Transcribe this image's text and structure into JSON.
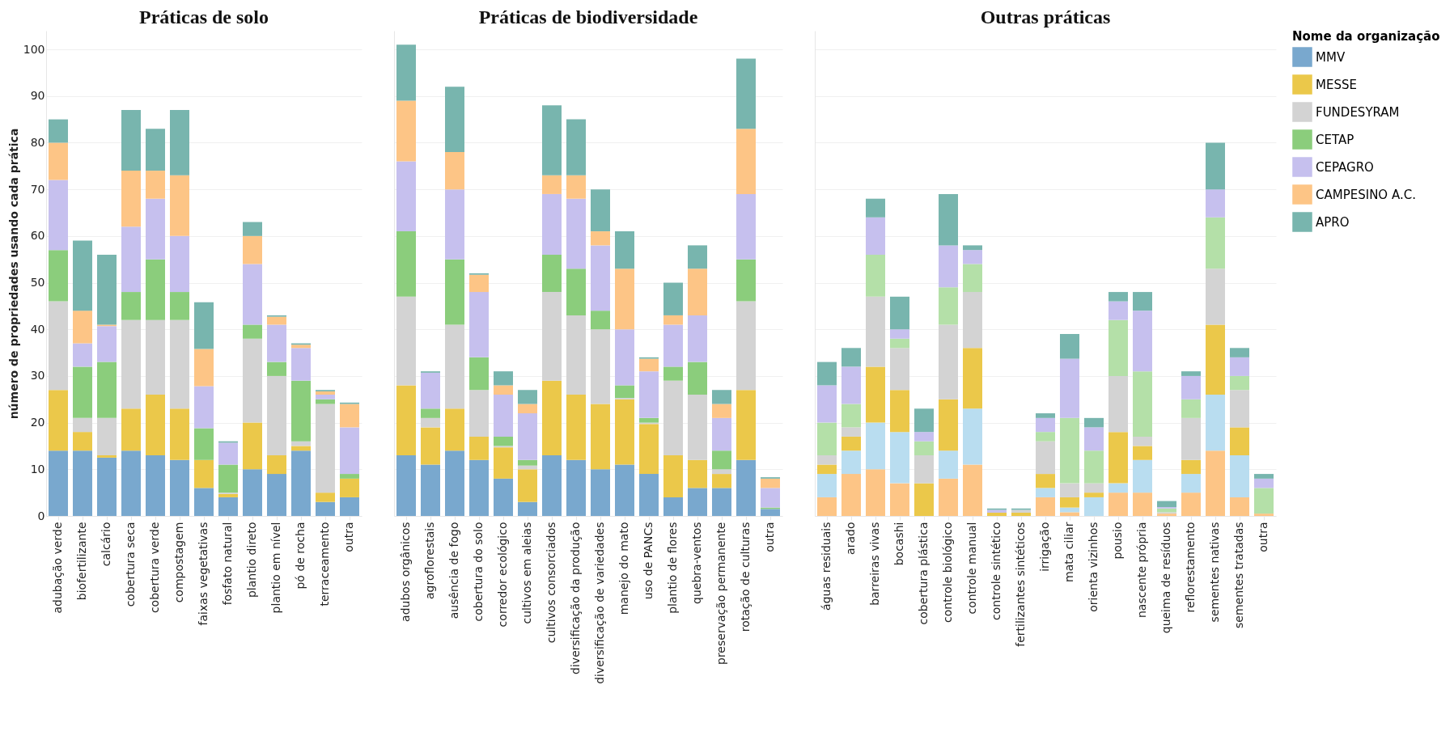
{
  "chart_data": [
    {
      "type": "bar",
      "stacked": true,
      "title": "Práticas de solo",
      "ylabel": "número de propriedades usando cada prática",
      "legend_title": "Nome da organização",
      "legend": "right",
      "grid": "y",
      "ylim": [
        0,
        104
      ],
      "yticks": [
        0,
        10,
        20,
        30,
        40,
        50,
        60,
        70,
        80,
        90,
        100
      ],
      "categories": [
        "adubação verde",
        "biofertilizante",
        "calcário",
        "cobertura seca",
        "cobertura verde",
        "compostagem",
        "faixas vegetativas",
        "fosfato natural",
        "plantio direto",
        "plantio em nível",
        "pó de rocha",
        "terraceamento",
        "outra"
      ],
      "series": [
        {
          "name": "MMV",
          "color": "#79a8ce",
          "values": [
            14,
            14,
            12.5,
            14,
            13,
            12,
            6,
            4,
            10,
            9,
            14,
            3,
            4
          ]
        },
        {
          "name": "MESSE",
          "color": "#ebc84a",
          "values": [
            13,
            4,
            0.5,
            9,
            13,
            11,
            6,
            0.7,
            10,
            4,
            1,
            2,
            4
          ]
        },
        {
          "name": "FUNDESYRAM",
          "color": "#d3d3d3",
          "values": [
            19,
            3,
            8,
            19,
            16,
            19,
            null,
            0.3,
            18,
            17,
            1,
            19,
            0
          ]
        },
        {
          "name": "CETAP",
          "color": "#8bcd7c",
          "values": [
            11,
            11,
            12,
            6,
            13,
            6,
            6.8,
            6,
            3,
            3,
            13,
            1,
            1
          ]
        },
        {
          "name": "CEPAGRO",
          "color": "#c6c0ee",
          "values": [
            15,
            5,
            7.7,
            14,
            13,
            12,
            9,
            4.7,
            13,
            8,
            7,
            1,
            10
          ]
        },
        {
          "name": "CAMPESINO A.C.",
          "color": "#fdc586",
          "values": [
            8,
            7,
            0.3,
            12,
            6,
            13,
            8,
            0,
            6,
            1.7,
            0.7,
            0.7,
            5
          ]
        },
        {
          "name": "APRO",
          "color": "#78b5ae",
          "values": [
            5,
            15,
            15,
            13,
            9,
            14,
            10,
            0.3,
            3,
            0.3,
            0.3,
            0.3,
            0.3
          ]
        }
      ]
    },
    {
      "type": "bar",
      "stacked": true,
      "title": "Práticas de biodiversidade",
      "grid": "y",
      "tick_labels": "x",
      "ylim": [
        0,
        104
      ],
      "yticks": [
        0,
        10,
        20,
        30,
        40,
        50,
        60,
        70,
        80,
        90,
        100
      ],
      "categories": [
        "adubos orgânicos",
        "agroflorestais",
        "ausência de fogo",
        "cobertura do solo",
        "corredor ecológico",
        "cultivos em aleias",
        "cultivos consorciados",
        "diversificação da produção",
        "diversificação de variedades",
        "manejo do mato",
        "uso de PANCs",
        "plantio de flores",
        "quebra-ventos",
        "preservação permanente",
        "rotação de culturas",
        "outra"
      ],
      "series": [
        {
          "name": "MMV",
          "color": "#79a8ce",
          "values": [
            13,
            11,
            14,
            12,
            8,
            3,
            13,
            12,
            10,
            11,
            9,
            4,
            6,
            6,
            12,
            1.5
          ]
        },
        {
          "name": "MESSE",
          "color": "#ebc84a",
          "values": [
            15,
            8,
            9,
            5,
            6.7,
            7,
            16,
            14,
            14,
            14,
            10.7,
            9,
            6,
            3,
            15,
            0
          ]
        },
        {
          "name": "FUNDESYRAM",
          "color": "#d3d3d3",
          "values": [
            19,
            2,
            18,
            10,
            0.3,
            0.8,
            19,
            17,
            16,
            0.3,
            0.3,
            16,
            14,
            1,
            19,
            0
          ]
        },
        {
          "name": "CETAP",
          "color": "#8bcd7c",
          "values": [
            14,
            2,
            14,
            7,
            2,
            1.2,
            8,
            10,
            4,
            2.7,
            1,
            3,
            7,
            4,
            9,
            0.3
          ]
        },
        {
          "name": "CEPAGRO",
          "color": "#c6c0ee",
          "values": [
            15,
            7.7,
            15,
            14,
            9,
            10,
            13,
            15,
            14,
            12,
            10,
            9,
            10,
            7,
            14,
            4.2
          ]
        },
        {
          "name": "CAMPESINO A.C.",
          "color": "#fdc586",
          "values": [
            13,
            0,
            8,
            3.7,
            2,
            2,
            4,
            5,
            3,
            13,
            2.7,
            2,
            10,
            3,
            14,
            2
          ]
        },
        {
          "name": "APRO",
          "color": "#78b5ae",
          "values": [
            12,
            0.3,
            14,
            0.3,
            3,
            3,
            15,
            12,
            9,
            8,
            0.3,
            7,
            5,
            3,
            15,
            0.3
          ]
        }
      ]
    },
    {
      "type": "bar",
      "stacked": true,
      "title": "Outras práticas",
      "grid": "y",
      "tick_labels": "x",
      "ylim": [
        0,
        104
      ],
      "yticks": [
        0,
        10,
        20,
        30,
        40,
        50,
        60,
        70,
        80,
        90,
        100
      ],
      "categories": [
        "águas residuais",
        "arado",
        "barreiras vivas",
        "bocashi",
        "cobertura plástica",
        "controle biológico",
        "controle manual",
        "controle sintético",
        "fertilizantes sintéticos",
        "irrigação",
        "mata ciliar",
        "orienta vizinhos",
        "pousio",
        "nascente própria",
        "queima de resíduos",
        "reflorestamento",
        "sementes nativas",
        "sementes tratadas",
        "outra"
      ],
      "series": [
        {
          "color": "#fdc586",
          "values": [
            4,
            9,
            10,
            7,
            0,
            8,
            11,
            0,
            0,
            4,
            0.8,
            0,
            5,
            5,
            0.5,
            5,
            14,
            4,
            0.5
          ]
        },
        {
          "color": "#b9ddf0",
          "values": [
            5,
            5,
            10,
            11,
            0,
            6,
            12,
            0,
            0,
            2,
            1,
            4,
            2,
            7,
            0,
            4,
            12,
            9,
            0
          ]
        },
        {
          "color": "#ebc84a",
          "values": [
            2,
            3,
            12,
            9,
            7,
            11,
            13,
            0.7,
            0.7,
            3,
            2.2,
            1,
            11,
            3,
            0,
            3,
            15,
            6,
            0
          ]
        },
        {
          "color": "#d3d3d3",
          "values": [
            2,
            2,
            15,
            9,
            6,
            16,
            12,
            null,
            0.6,
            7,
            3,
            2,
            12,
            2,
            0.3,
            9,
            12,
            8,
            0
          ]
        },
        {
          "color": "#b4e0a8",
          "values": [
            7,
            5,
            9,
            2,
            3,
            8,
            6,
            0,
            0,
            2,
            14,
            7,
            12,
            14,
            0.8,
            4,
            11,
            3,
            5.5
          ]
        },
        {
          "color": "#c6c0ee",
          "values": [
            8,
            8,
            8,
            2,
            2,
            9,
            3,
            0.6,
            null,
            3,
            12.7,
            5,
            4,
            13,
            0.3,
            5,
            6,
            4,
            2
          ]
        },
        {
          "color": "#78b5ae",
          "values": [
            5,
            4,
            4,
            7,
            5,
            11,
            1,
            0.3,
            0.3,
            1,
            5.3,
            2,
            2,
            4,
            1.3,
            1,
            10,
            2,
            1
          ]
        }
      ]
    }
  ]
}
